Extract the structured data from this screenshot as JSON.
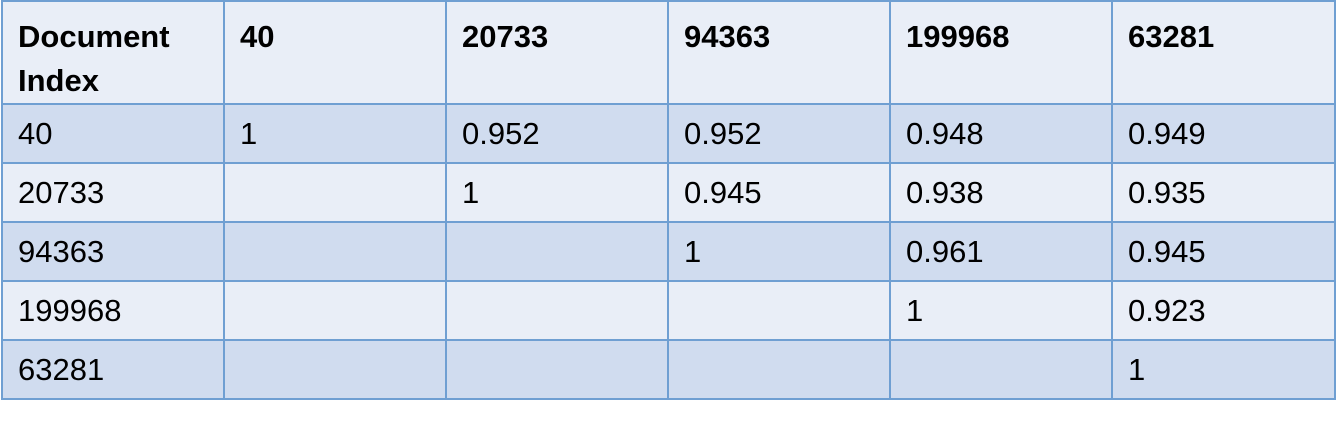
{
  "table": {
    "headers": [
      "Document Index",
      "40",
      "20733",
      "94363",
      "199968",
      "63281"
    ],
    "rows": [
      [
        "40",
        "1",
        "0.952",
        "0.952",
        "0.948",
        "0.949"
      ],
      [
        "20733",
        "",
        "1",
        "0.945",
        "0.938",
        "0.935"
      ],
      [
        "94363",
        "",
        "",
        "1",
        "0.961",
        "0.945"
      ],
      [
        "199968",
        "",
        "",
        "",
        "1",
        "0.923"
      ],
      [
        "63281",
        "",
        "",
        "",
        "",
        "1"
      ]
    ]
  },
  "colors": {
    "border": "#6f9fd2",
    "row_dark": "#d0dcef",
    "row_light": "#e9eef7"
  }
}
